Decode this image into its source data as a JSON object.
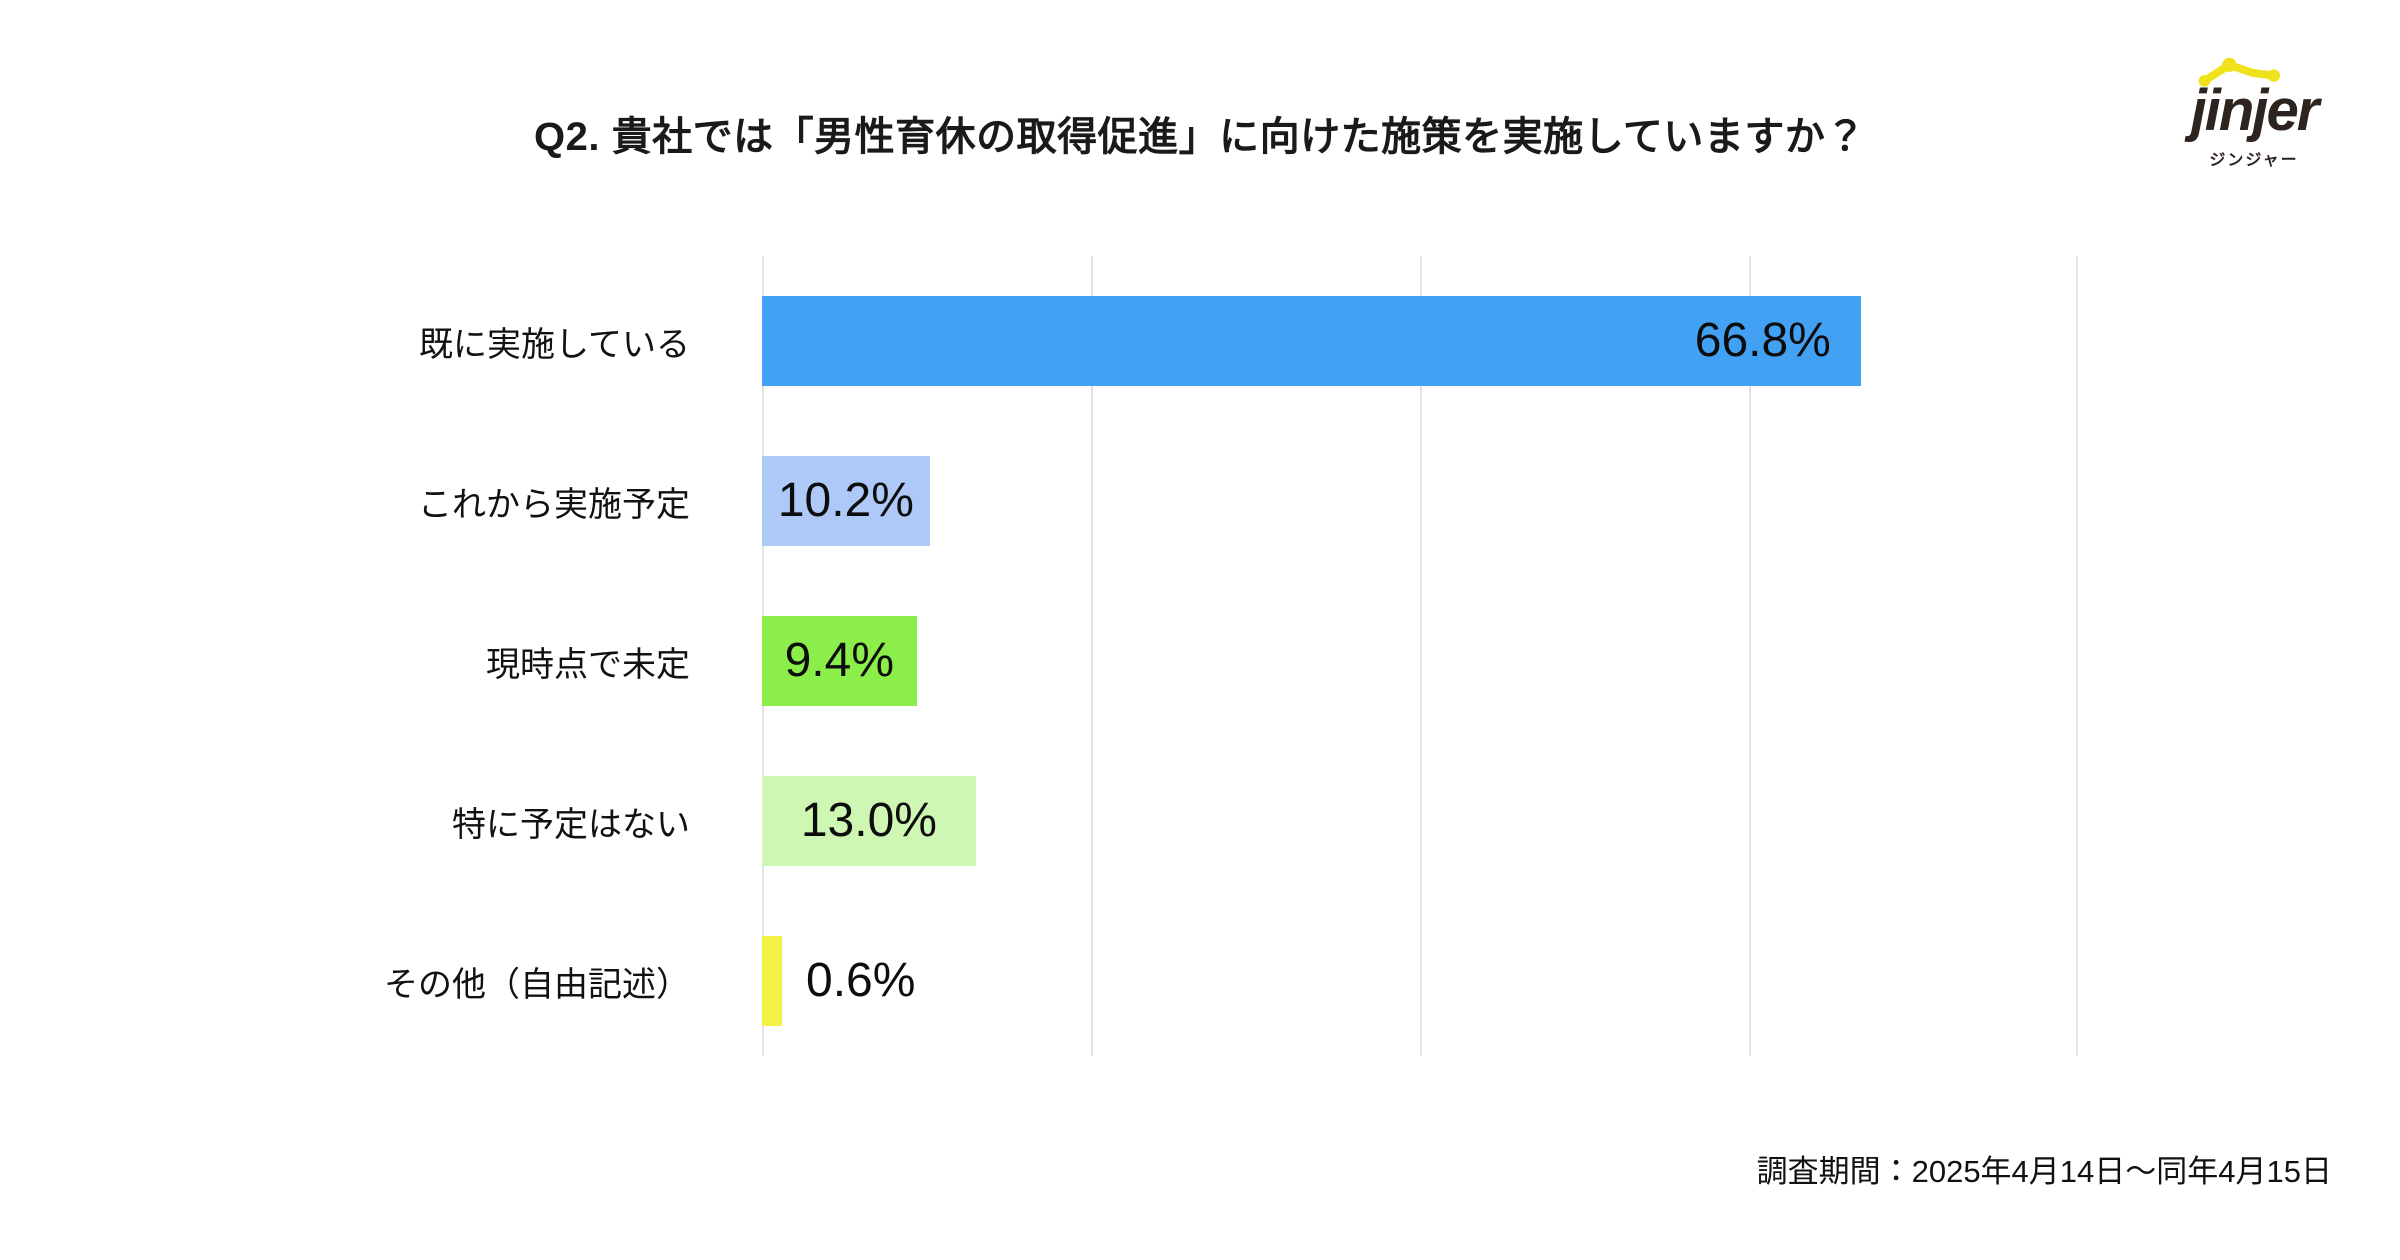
{
  "logo": {
    "wordmark": "jinjer",
    "katakana": "ジンジャー",
    "brand_yellow": "#efe21a",
    "brand_dark": "#2d2420"
  },
  "chart_data": {
    "type": "bar",
    "orientation": "horizontal",
    "title": "Q2. 貴社では「男性育休の取得促進」に向けた施策を実施していますか？",
    "categories": [
      "既に実施している",
      "これから実施予定",
      "現時点で未定",
      "特に予定はない",
      "その他（自由記述）"
    ],
    "values": [
      66.8,
      10.2,
      9.4,
      13.0,
      0.6
    ],
    "value_labels": [
      "66.8%",
      "10.2%",
      "9.4%",
      "13.0%",
      "0.6%"
    ],
    "bar_colors": [
      "#42a1f2",
      "#aec9f7",
      "#8cee4b",
      "#cdf7b3",
      "#f4f244"
    ],
    "xlim": [
      0,
      80
    ],
    "gridline_interval": 20,
    "grid": true,
    "xlabel": "",
    "ylabel": "",
    "legend": false
  },
  "footer": {
    "survey_period": "調査期間：2025年4月14日〜同年4月15日"
  },
  "colors": {
    "background": "#ffffff",
    "grid": "#e3e3e3",
    "text": "#1a1a1a"
  }
}
